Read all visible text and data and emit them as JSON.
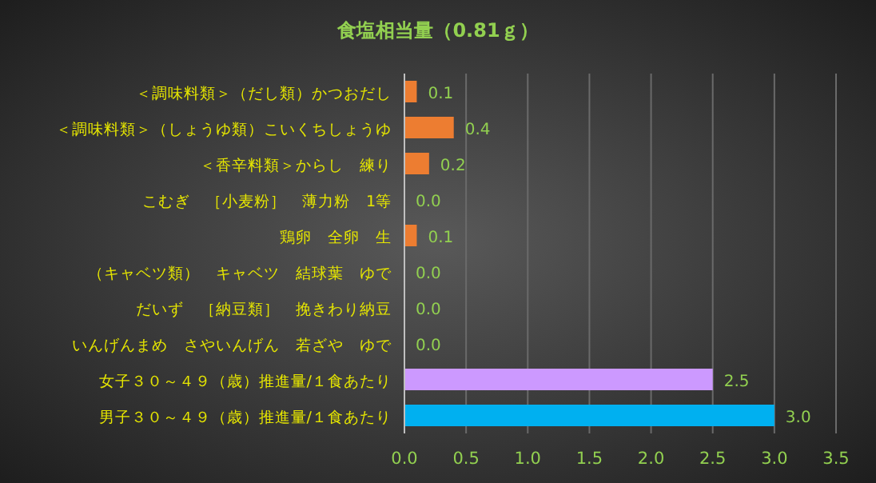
{
  "chart_data": {
    "type": "bar",
    "orientation": "horizontal",
    "title": "食塩相当量（0.81ｇ）",
    "categories": [
      "＜調味料類＞（だし類）かつおだし",
      "＜調味料類＞（しょうゆ類）こいくちしょうゆ",
      "＜香辛料類＞からし　練り",
      "こむぎ　［小麦粉］　薄力粉　1等",
      "鶏卵　全卵　生",
      "（キャベツ類）　キャベツ　結球葉　ゆで",
      "だいず　［納豆類］　挽きわり納豆",
      "いんげんまめ　さやいんげん　若ざや　ゆで",
      "女子３０～４９（歳）推進量/１食あたり",
      "男子３０～４９（歳）推進量/１食あたり"
    ],
    "values": [
      0.1,
      0.4,
      0.2,
      0,
      0.1,
      0,
      0,
      0,
      2.5,
      3
    ],
    "value_labels": [
      "0.1",
      "0.4",
      "0.2",
      "0.0",
      "0.1",
      "0.0",
      "0.0",
      "0.0",
      "2.5",
      "3.0"
    ],
    "colors": [
      "#ed7d31",
      "#ed7d31",
      "#ed7d31",
      "#ed7d31",
      "#ed7d31",
      "#ed7d31",
      "#ed7d31",
      "#ed7d31",
      "#cc99ff",
      "#00b0f0"
    ],
    "xlim": [
      0,
      3.5
    ],
    "xticks": [
      {
        "value": 0,
        "label": "0.0"
      },
      {
        "value": 0.5,
        "label": "0.5"
      },
      {
        "value": 1,
        "label": "1.0"
      },
      {
        "value": 1.5,
        "label": "1.5"
      },
      {
        "value": 2,
        "label": "2.0"
      },
      {
        "value": 2.5,
        "label": "2.5"
      },
      {
        "value": 3,
        "label": "3.0"
      },
      {
        "value": 3.5,
        "label": "3.5"
      }
    ],
    "grid": "x"
  }
}
